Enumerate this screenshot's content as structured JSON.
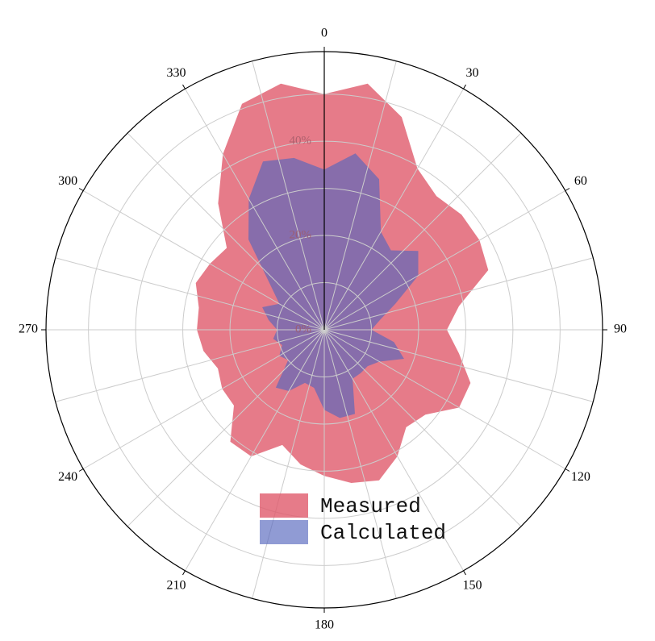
{
  "chart_data": {
    "type": "polar_area",
    "x": [
      0,
      10,
      20,
      30,
      40,
      50,
      60,
      70,
      80,
      90,
      100,
      110,
      120,
      130,
      140,
      150,
      160,
      170,
      180,
      190,
      200,
      210,
      220,
      230,
      240,
      250,
      260,
      270,
      280,
      290,
      300,
      310,
      320,
      330,
      340,
      350
    ],
    "xlim": [
      0,
      360
    ],
    "xticks": [
      0,
      30,
      60,
      90,
      120,
      150,
      180,
      210,
      240,
      270,
      300,
      330
    ],
    "minor_xticks": [
      15,
      45,
      75,
      105,
      135,
      165,
      195,
      225,
      255,
      285,
      315,
      345
    ],
    "ylim": [
      0,
      59
    ],
    "yticks": [
      {
        "value": 0,
        "label": "0%"
      },
      {
        "value": 20,
        "label": "20%"
      },
      {
        "value": 40,
        "label": "40%"
      }
    ],
    "minor_yticks": [
      10,
      30,
      50
    ],
    "grid": true,
    "series": [
      {
        "name": "Measured",
        "color": "#e05a6c",
        "values": [
          50,
          53,
          48,
          39.5,
          37,
          38,
          38,
          37,
          29,
          26,
          29,
          33,
          33,
          28,
          27,
          31,
          34,
          33,
          31,
          29,
          26,
          31,
          31,
          25,
          25,
          24,
          26,
          27,
          27,
          29,
          28,
          27,
          35,
          43,
          51,
          53
        ]
      },
      {
        "name": "Calculated",
        "color": "#5565bd",
        "values": [
          34,
          38,
          34,
          24,
          22,
          26,
          23,
          16,
          12,
          10,
          15,
          18,
          13.5,
          12,
          12,
          12,
          19,
          19,
          17,
          12.5,
          12,
          15,
          16,
          10,
          11,
          9.5,
          11,
          10,
          12,
          14,
          11,
          15,
          25,
          32,
          38,
          37
        ]
      }
    ]
  }
}
